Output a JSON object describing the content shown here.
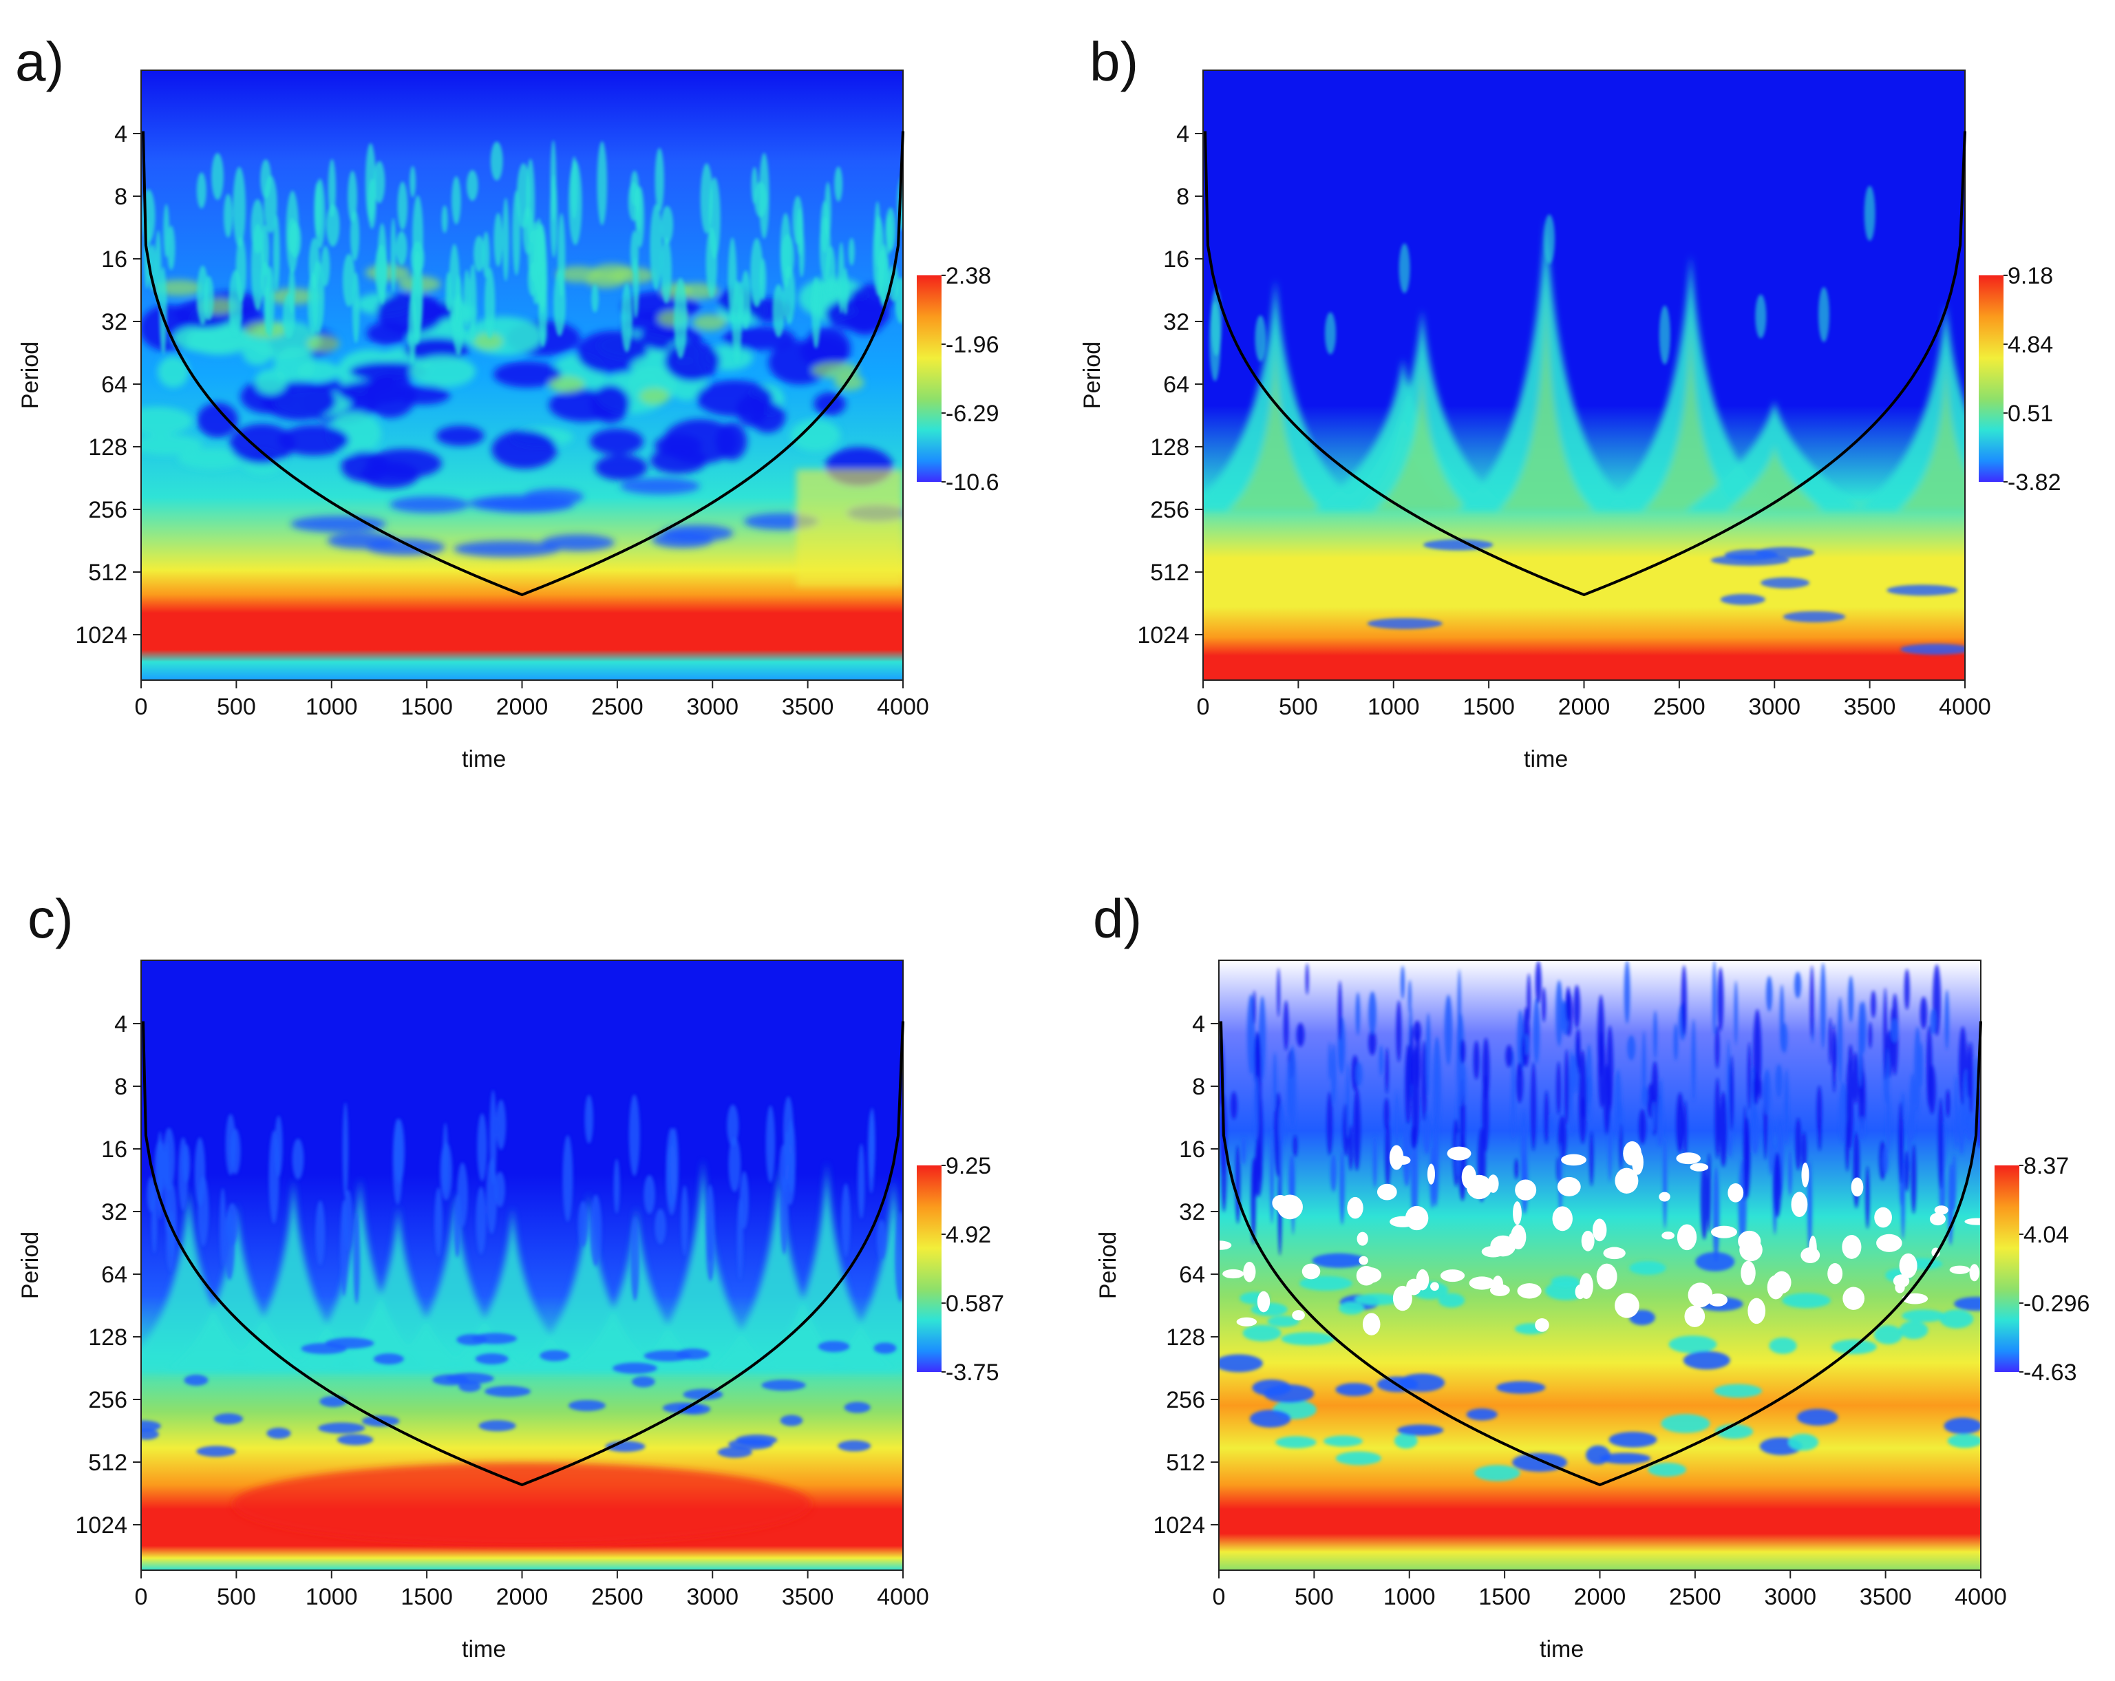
{
  "chart_data": [
    {
      "type": "heatmap",
      "panel_label": "a)",
      "xlabel": "time",
      "ylabel": "Period",
      "xlim": [
        0,
        4000
      ],
      "x_ticks": [
        "0",
        "500",
        "1000",
        "1500",
        "2000",
        "2500",
        "3000",
        "3500",
        "4000"
      ],
      "y_ticks": [
        "4",
        "8",
        "16",
        "32",
        "64",
        "128",
        "256",
        "512",
        "1024"
      ],
      "colorbar": [
        "2.38",
        "-1.96",
        "-6.29",
        "-10.6"
      ],
      "pattern": "a",
      "cone_of_influence": true
    },
    {
      "type": "heatmap",
      "panel_label": "b)",
      "xlabel": "time",
      "ylabel": "Period",
      "xlim": [
        0,
        4000
      ],
      "x_ticks": [
        "0",
        "500",
        "1000",
        "1500",
        "2000",
        "2500",
        "3000",
        "3500",
        "4000"
      ],
      "y_ticks": [
        "4",
        "8",
        "16",
        "32",
        "64",
        "128",
        "256",
        "512",
        "1024"
      ],
      "colorbar": [
        "9.18",
        "4.84",
        "0.51",
        "-3.82"
      ],
      "pattern": "b",
      "cone_of_influence": true
    },
    {
      "type": "heatmap",
      "panel_label": "c)",
      "xlabel": "time",
      "ylabel": "Period",
      "xlim": [
        0,
        4000
      ],
      "x_ticks": [
        "0",
        "500",
        "1000",
        "1500",
        "2000",
        "2500",
        "3000",
        "3500",
        "4000"
      ],
      "y_ticks": [
        "4",
        "8",
        "16",
        "32",
        "64",
        "128",
        "256",
        "512",
        "1024"
      ],
      "colorbar": [
        "9.25",
        "4.92",
        "0.587",
        "-3.75"
      ],
      "pattern": "c",
      "cone_of_influence": true
    },
    {
      "type": "heatmap",
      "panel_label": "d)",
      "xlabel": "time",
      "ylabel": "Period",
      "xlim": [
        0,
        4000
      ],
      "x_ticks": [
        "0",
        "500",
        "1000",
        "1500",
        "2000",
        "2500",
        "3000",
        "3500",
        "4000"
      ],
      "y_ticks": [
        "4",
        "8",
        "16",
        "32",
        "64",
        "128",
        "256",
        "512",
        "1024"
      ],
      "colorbar": [
        "8.37",
        "4.04",
        "-0.296",
        "-4.63"
      ],
      "pattern": "d",
      "cone_of_influence": true
    }
  ],
  "colors": {
    "deep_blue": "#0a14f0",
    "blue": "#1f5cff",
    "cyan": "#2fe3d6",
    "green": "#8ee06a",
    "yellow": "#f2ee3a",
    "orange": "#fb9a1c",
    "red": "#f4231a"
  }
}
